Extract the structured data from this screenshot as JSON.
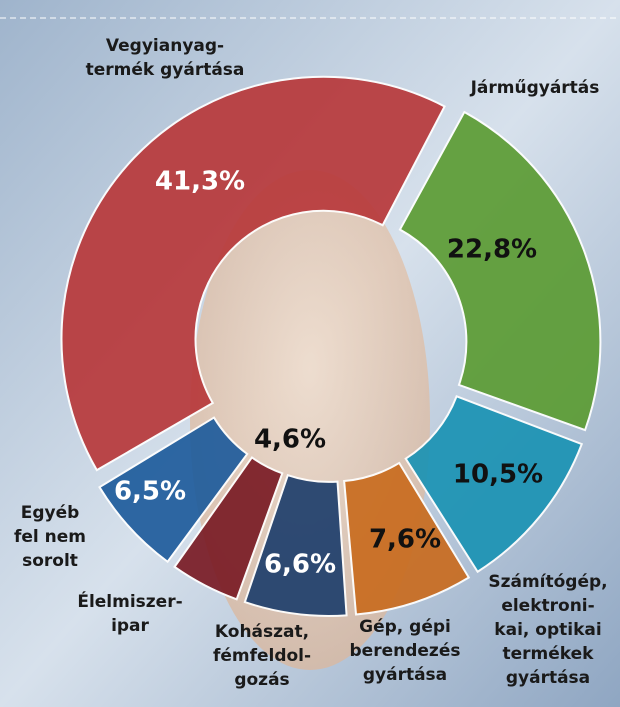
{
  "chart_data": {
    "type": "donut",
    "categories": [
      [
        "Vegyianyag-",
        "termék gyártása"
      ],
      [
        "Járműgyártás"
      ],
      [
        "Számítógép,",
        "elektroni-",
        "kai, optikai",
        "termékek",
        "gyártása"
      ],
      [
        "Gép, gépi",
        "berendezés",
        "gyártása"
      ],
      [
        "Kohászat,",
        "fémfeldol-",
        "gozás"
      ],
      [
        "Élelmiszer-",
        "ipar"
      ],
      [
        "Egyéb",
        "fel nem",
        "sorolt"
      ]
    ],
    "values": [
      41.3,
      22.8,
      10.5,
      7.6,
      6.6,
      4.6,
      6.5
    ],
    "value_labels": [
      "41,3%",
      "22,8%",
      "10,5%",
      "7,6%",
      "6,6%",
      "4,6%",
      "6,5%"
    ],
    "colors": [
      "#b8393b",
      "#5c9c34",
      "#1b93b4",
      "#c96c1f",
      "#1f3f6c",
      "#7a1c25",
      "#1f5c9c"
    ]
  }
}
